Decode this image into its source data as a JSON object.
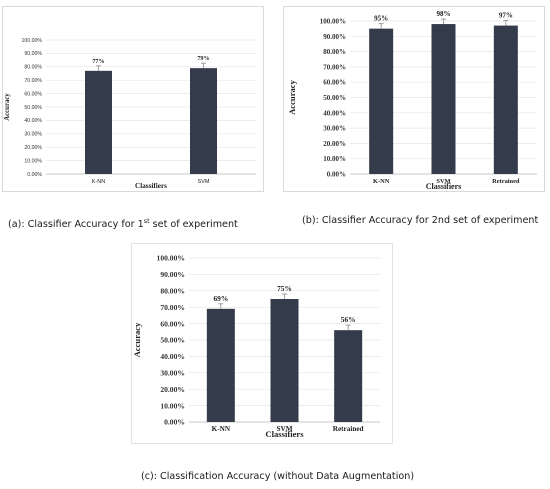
{
  "chart_data": [
    {
      "type": "bar",
      "categories": [
        "K-NN",
        "SVM"
      ],
      "values": [
        77,
        79
      ],
      "data_labels": [
        "77%",
        "79%"
      ],
      "yticks": [
        "0.00%",
        "10.00%",
        "20.00%",
        "30.00%",
        "40.00%",
        "50.00%",
        "60.00%",
        "70.00%",
        "80.00%",
        "90.00%",
        "100.00%"
      ],
      "ylim": [
        0,
        100
      ],
      "xlabel": "Classifiers",
      "ylabel": "Accuracy",
      "caption_pre": "(a): Classifier Accuracy for 1",
      "caption_sup": "st",
      "caption_post": " set of experiment",
      "bar_color": "#343b4b",
      "grid": true
    },
    {
      "type": "bar",
      "categories": [
        "K-NN",
        "SVM",
        "Retrained"
      ],
      "values": [
        95,
        98,
        97
      ],
      "data_labels": [
        "95%",
        "98%",
        "97%"
      ],
      "yticks": [
        "0.00%",
        "10.00%",
        "20.00%",
        "30.00%",
        "40.00%",
        "50.00%",
        "60.00%",
        "70.00%",
        "80.00%",
        "90.00%",
        "100.00%"
      ],
      "ylim": [
        0,
        100
      ],
      "xlabel": "Classifiers",
      "ylabel": "Accuracy",
      "caption": "(b): Classifier Accuracy for 2nd set of experiment",
      "bar_color": "#343b4b",
      "grid": true
    },
    {
      "type": "bar",
      "categories": [
        "K-NN",
        "SVM",
        "Retrained"
      ],
      "values": [
        69,
        75,
        56
      ],
      "data_labels": [
        "69%",
        "75%",
        "56%"
      ],
      "yticks": [
        "0.00%",
        "10.00%",
        "20.00%",
        "30.00%",
        "40.00%",
        "50.00%",
        "60.00%",
        "70.00%",
        "80.00%",
        "90.00%",
        "100.00%"
      ],
      "ylim": [
        0,
        100
      ],
      "xlabel": "Classifiers",
      "ylabel": "Accuracy",
      "caption": "(c): Classification Accuracy (without Data Augmentation)",
      "bar_color": "#343b4b",
      "grid": true
    }
  ]
}
